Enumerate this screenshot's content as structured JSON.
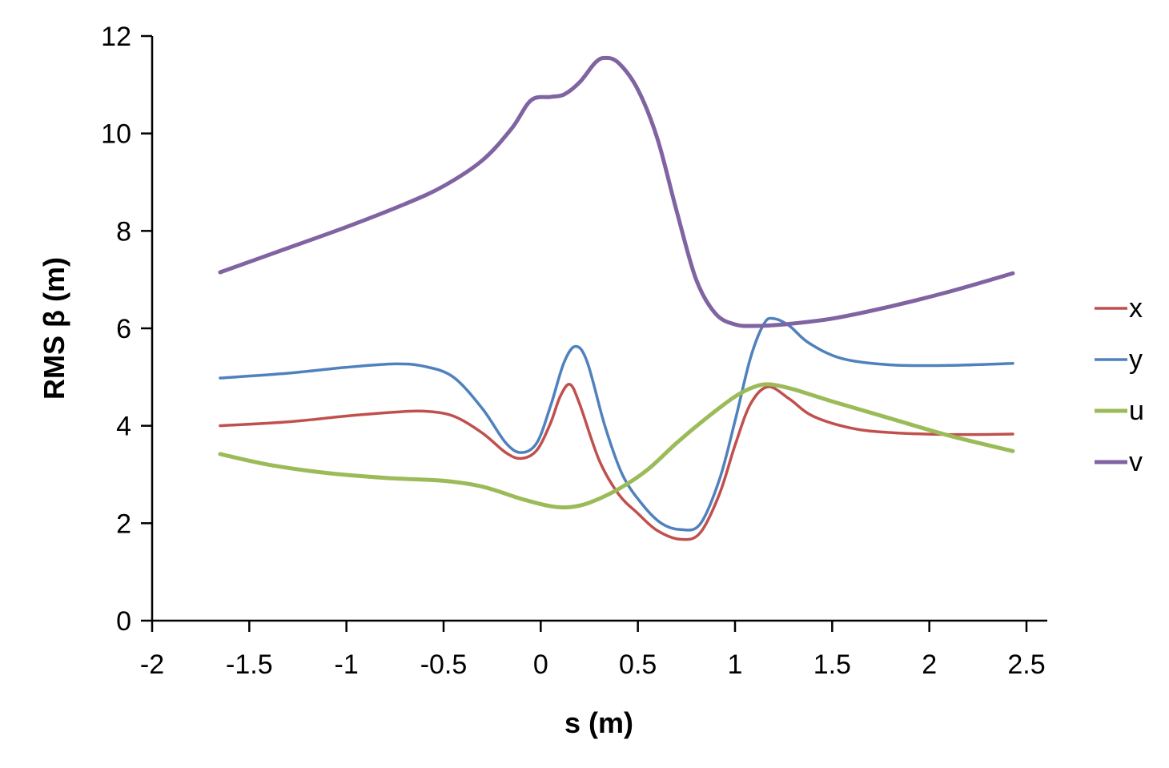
{
  "chart_data": {
    "type": "line",
    "title": "",
    "xlabel": "s (m)",
    "ylabel": "RMS β (m)",
    "xlim": [
      -2,
      2.5
    ],
    "ylim": [
      0,
      12
    ],
    "xticks": [
      -2,
      -1.5,
      -1,
      -0.5,
      0,
      0.5,
      1,
      1.5,
      2,
      2.5
    ],
    "yticks": [
      0,
      2,
      4,
      6,
      8,
      10,
      12
    ],
    "xtick_labels": [
      "-2",
      "-1.5",
      "-1",
      "-0.5",
      "0",
      "0.5",
      "1",
      "1.5",
      "2",
      "2.5"
    ],
    "ytick_labels": [
      "0",
      "2",
      "4",
      "6",
      "8",
      "10",
      "12"
    ],
    "grid": false,
    "legend_position": "right",
    "series": [
      {
        "name": "x",
        "color": "#c0504d",
        "points": [
          [
            -1.65,
            4.0
          ],
          [
            -1.3,
            4.08
          ],
          [
            -1.0,
            4.2
          ],
          [
            -0.75,
            4.28
          ],
          [
            -0.6,
            4.3
          ],
          [
            -0.45,
            4.2
          ],
          [
            -0.3,
            3.85
          ],
          [
            -0.18,
            3.45
          ],
          [
            -0.1,
            3.33
          ],
          [
            -0.02,
            3.5
          ],
          [
            0.05,
            4.05
          ],
          [
            0.1,
            4.6
          ],
          [
            0.15,
            4.85
          ],
          [
            0.2,
            4.45
          ],
          [
            0.3,
            3.3
          ],
          [
            0.4,
            2.6
          ],
          [
            0.5,
            2.2
          ],
          [
            0.6,
            1.85
          ],
          [
            0.72,
            1.67
          ],
          [
            0.82,
            1.8
          ],
          [
            0.92,
            2.6
          ],
          [
            1.0,
            3.6
          ],
          [
            1.08,
            4.45
          ],
          [
            1.17,
            4.8
          ],
          [
            1.28,
            4.55
          ],
          [
            1.4,
            4.2
          ],
          [
            1.6,
            3.95
          ],
          [
            1.8,
            3.86
          ],
          [
            2.1,
            3.82
          ],
          [
            2.43,
            3.83
          ]
        ]
      },
      {
        "name": "y",
        "color": "#4f81bd",
        "points": [
          [
            -1.65,
            4.98
          ],
          [
            -1.3,
            5.08
          ],
          [
            -1.0,
            5.2
          ],
          [
            -0.75,
            5.27
          ],
          [
            -0.6,
            5.22
          ],
          [
            -0.45,
            5.0
          ],
          [
            -0.3,
            4.35
          ],
          [
            -0.18,
            3.65
          ],
          [
            -0.1,
            3.45
          ],
          [
            -0.02,
            3.65
          ],
          [
            0.05,
            4.4
          ],
          [
            0.12,
            5.3
          ],
          [
            0.18,
            5.63
          ],
          [
            0.24,
            5.3
          ],
          [
            0.33,
            4.0
          ],
          [
            0.42,
            3.0
          ],
          [
            0.52,
            2.4
          ],
          [
            0.62,
            2.0
          ],
          [
            0.72,
            1.87
          ],
          [
            0.82,
            1.98
          ],
          [
            0.92,
            2.9
          ],
          [
            1.0,
            4.1
          ],
          [
            1.08,
            5.4
          ],
          [
            1.15,
            6.1
          ],
          [
            1.2,
            6.2
          ],
          [
            1.28,
            6.05
          ],
          [
            1.38,
            5.7
          ],
          [
            1.55,
            5.38
          ],
          [
            1.8,
            5.25
          ],
          [
            2.1,
            5.24
          ],
          [
            2.43,
            5.28
          ]
        ]
      },
      {
        "name": "u",
        "color": "#9bbb59",
        "points": [
          [
            -1.65,
            3.42
          ],
          [
            -1.4,
            3.2
          ],
          [
            -1.1,
            3.03
          ],
          [
            -0.8,
            2.93
          ],
          [
            -0.5,
            2.87
          ],
          [
            -0.3,
            2.75
          ],
          [
            -0.1,
            2.5
          ],
          [
            0.05,
            2.35
          ],
          [
            0.15,
            2.33
          ],
          [
            0.25,
            2.42
          ],
          [
            0.4,
            2.7
          ],
          [
            0.55,
            3.1
          ],
          [
            0.7,
            3.65
          ],
          [
            0.85,
            4.15
          ],
          [
            1.0,
            4.6
          ],
          [
            1.1,
            4.8
          ],
          [
            1.18,
            4.85
          ],
          [
            1.3,
            4.75
          ],
          [
            1.5,
            4.5
          ],
          [
            1.8,
            4.15
          ],
          [
            2.1,
            3.8
          ],
          [
            2.43,
            3.48
          ]
        ]
      },
      {
        "name": "v",
        "color": "#8064a2",
        "points": [
          [
            -1.65,
            7.15
          ],
          [
            -1.3,
            7.65
          ],
          [
            -1.0,
            8.08
          ],
          [
            -0.7,
            8.55
          ],
          [
            -0.5,
            8.92
          ],
          [
            -0.3,
            9.45
          ],
          [
            -0.15,
            10.1
          ],
          [
            -0.05,
            10.68
          ],
          [
            0.05,
            10.75
          ],
          [
            0.12,
            10.8
          ],
          [
            0.2,
            11.05
          ],
          [
            0.28,
            11.45
          ],
          [
            0.33,
            11.55
          ],
          [
            0.4,
            11.45
          ],
          [
            0.5,
            10.9
          ],
          [
            0.6,
            9.9
          ],
          [
            0.7,
            8.4
          ],
          [
            0.8,
            7.0
          ],
          [
            0.9,
            6.3
          ],
          [
            1.0,
            6.08
          ],
          [
            1.1,
            6.05
          ],
          [
            1.25,
            6.08
          ],
          [
            1.5,
            6.2
          ],
          [
            1.8,
            6.45
          ],
          [
            2.1,
            6.75
          ],
          [
            2.43,
            7.13
          ]
        ]
      }
    ]
  }
}
